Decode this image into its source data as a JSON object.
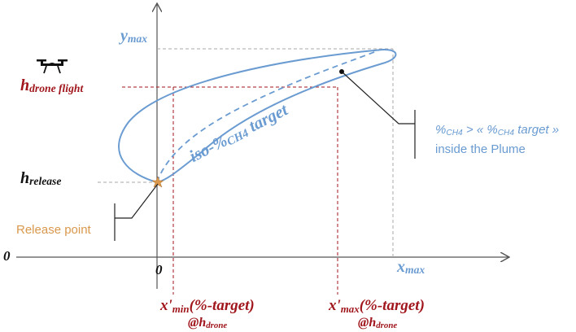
{
  "labels": {
    "y_max": [
      {
        "text": "y"
      },
      {
        "sub": "max"
      }
    ],
    "h_drone": [
      {
        "text": "h"
      },
      {
        "sub": "drone flight"
      }
    ],
    "h_release": [
      {
        "text": "h"
      },
      {
        "sub": "release"
      }
    ],
    "release_point": [
      {
        "text": "Release point"
      }
    ],
    "zero_left": [
      {
        "text": "0"
      }
    ],
    "zero_origin": [
      {
        "text": "0"
      }
    ],
    "x_max": [
      {
        "text": "x"
      },
      {
        "sub": "max"
      }
    ],
    "x_min_prime": [
      {
        "text": "x'"
      },
      {
        "sub": "min"
      },
      {
        "text": "(%-target)"
      }
    ],
    "x_min_at": [
      {
        "text": "@h"
      },
      {
        "sub": "drone"
      }
    ],
    "x_max_prime": [
      {
        "text": "x'"
      },
      {
        "sub": "max"
      },
      {
        "text": "(%-target)"
      }
    ],
    "x_max_at": [
      {
        "text": "@h"
      },
      {
        "sub": "drone"
      }
    ],
    "plume_condition": [
      {
        "text": "%"
      },
      {
        "sub": "CH4"
      },
      {
        "text": " > « %"
      },
      {
        "sub": "CH4"
      },
      {
        "text": " target »"
      }
    ],
    "plume_inside": [
      {
        "text": "inside the Plume"
      }
    ],
    "iso_line": [
      {
        "text": "iso-%"
      },
      {
        "sub": "CH4"
      },
      {
        "text": " target"
      }
    ]
  }
}
